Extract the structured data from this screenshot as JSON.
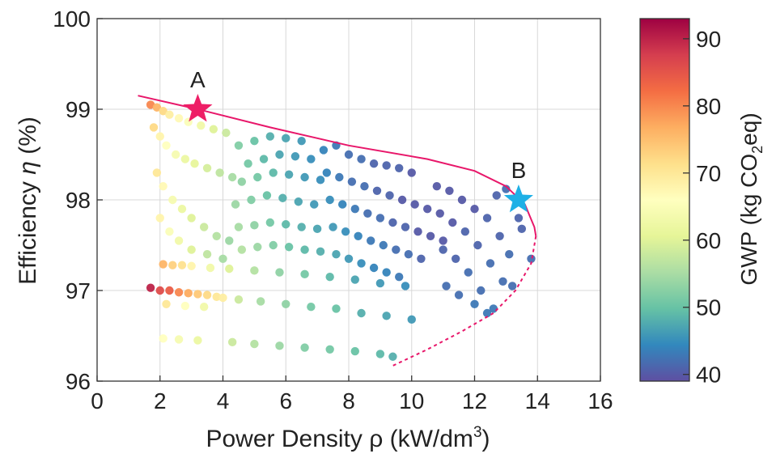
{
  "chart_data": {
    "type": "scatter",
    "title": "",
    "xlabel": "Power Density ρ (kW/dm",
    "xlabel_superscript": "3",
    "xlabel_close": ")",
    "ylabel_prefix": "Efficiency ",
    "ylabel_symbol": "η",
    "ylabel_suffix": " (%)",
    "xlim": [
      0,
      16
    ],
    "ylim": [
      96,
      100
    ],
    "xticks": [
      "0",
      "2",
      "4",
      "6",
      "8",
      "10",
      "12",
      "14",
      "16"
    ],
    "yticks": [
      "96",
      "97",
      "98",
      "99",
      "100"
    ],
    "grid": true,
    "colorbar": {
      "label_prefix": "GWP (kg CO",
      "label_subscript": "2",
      "label_suffix": "eq)",
      "range": [
        39,
        93
      ],
      "ticks": [
        "40",
        "50",
        "60",
        "70",
        "80",
        "90"
      ],
      "colormap": [
        "#5e4fa2",
        "#3288bd",
        "#66c2a5",
        "#abdda4",
        "#e6f598",
        "#ffffbf",
        "#fee08b",
        "#fdae61",
        "#f46d43",
        "#d53e4f",
        "#9e0142"
      ]
    },
    "pareto_front": {
      "color": "#e8176a",
      "solid": [
        [
          1.3,
          99.15
        ],
        [
          3.2,
          99.0
        ],
        [
          5.5,
          98.8
        ],
        [
          8.0,
          98.6
        ],
        [
          10.5,
          98.45
        ],
        [
          12.0,
          98.32
        ],
        [
          13.0,
          98.15
        ],
        [
          13.6,
          97.95
        ],
        [
          13.9,
          97.7
        ],
        [
          13.95,
          97.6
        ]
      ],
      "dashed": [
        [
          13.95,
          97.6
        ],
        [
          13.8,
          97.3
        ],
        [
          13.3,
          97.0
        ],
        [
          12.6,
          96.75
        ],
        [
          11.6,
          96.55
        ],
        [
          10.5,
          96.35
        ],
        [
          9.4,
          96.17
        ]
      ]
    },
    "markers": [
      {
        "label": "A",
        "x": 3.2,
        "y": 99.0,
        "color": "#ee1e66"
      },
      {
        "label": "B",
        "x": 13.4,
        "y": 98.0,
        "color": "#1fb0e6"
      }
    ],
    "series": [
      {
        "comment_free": true,
        "points": [
          [
            1.7,
            97.03,
            90
          ],
          [
            2.0,
            97.0,
            86
          ],
          [
            2.3,
            97.0,
            84
          ],
          [
            2.6,
            96.98,
            80
          ],
          [
            2.9,
            96.97,
            77
          ],
          [
            3.2,
            96.96,
            74
          ],
          [
            3.5,
            96.95,
            72
          ],
          [
            3.8,
            96.93,
            70
          ],
          [
            4.0,
            96.92,
            69
          ],
          [
            2.1,
            97.29,
            76
          ],
          [
            2.4,
            97.28,
            73
          ],
          [
            2.7,
            97.28,
            71
          ],
          [
            3.0,
            97.27,
            68
          ],
          [
            3.6,
            97.25,
            63
          ],
          [
            4.2,
            97.24,
            60
          ],
          [
            5.0,
            97.22,
            56
          ],
          [
            5.8,
            97.2,
            53
          ],
          [
            6.6,
            97.18,
            51
          ],
          [
            7.4,
            97.15,
            49
          ],
          [
            8.2,
            97.12,
            47
          ],
          [
            9.0,
            97.08,
            46
          ],
          [
            9.8,
            97.05,
            45
          ],
          [
            2.2,
            96.85,
            70
          ],
          [
            2.8,
            96.83,
            66
          ],
          [
            3.4,
            96.82,
            63
          ],
          [
            4.5,
            96.9,
            58
          ],
          [
            5.2,
            96.88,
            55
          ],
          [
            6.0,
            96.85,
            53
          ],
          [
            6.8,
            96.82,
            51
          ],
          [
            7.6,
            96.8,
            50
          ],
          [
            8.4,
            96.75,
            48
          ],
          [
            9.2,
            96.72,
            47
          ],
          [
            10.0,
            96.68,
            46
          ],
          [
            2.1,
            96.47,
            66
          ],
          [
            2.6,
            96.46,
            64
          ],
          [
            3.2,
            96.45,
            62
          ],
          [
            4.3,
            96.43,
            58
          ],
          [
            5.0,
            96.41,
            56
          ],
          [
            5.8,
            96.39,
            54
          ],
          [
            6.6,
            96.37,
            52
          ],
          [
            7.4,
            96.35,
            51
          ],
          [
            8.2,
            96.33,
            50
          ],
          [
            9.0,
            96.3,
            49
          ],
          [
            9.4,
            96.27,
            48
          ],
          [
            1.7,
            99.05,
            80
          ],
          [
            1.9,
            99.02,
            76
          ],
          [
            2.1,
            98.98,
            72
          ],
          [
            2.3,
            98.94,
            69
          ],
          [
            2.6,
            98.9,
            67
          ],
          [
            2.9,
            98.86,
            65
          ],
          [
            3.3,
            98.82,
            63
          ],
          [
            3.7,
            98.78,
            60
          ],
          [
            4.1,
            98.74,
            58
          ],
          [
            1.8,
            98.8,
            72
          ],
          [
            2.0,
            98.7,
            68
          ],
          [
            2.2,
            98.6,
            66
          ],
          [
            2.5,
            98.5,
            64
          ],
          [
            2.8,
            98.45,
            62
          ],
          [
            3.1,
            98.4,
            61
          ],
          [
            3.5,
            98.35,
            59
          ],
          [
            3.9,
            98.3,
            57
          ],
          [
            4.3,
            98.25,
            55
          ],
          [
            1.9,
            98.3,
            70
          ],
          [
            2.1,
            98.15,
            67
          ],
          [
            2.4,
            98.0,
            64
          ],
          [
            2.7,
            97.9,
            62
          ],
          [
            3.0,
            97.8,
            60
          ],
          [
            3.4,
            97.7,
            58
          ],
          [
            3.8,
            97.6,
            56
          ],
          [
            4.2,
            97.55,
            54
          ],
          [
            2.0,
            97.8,
            68
          ],
          [
            2.3,
            97.65,
            65
          ],
          [
            2.6,
            97.55,
            63
          ],
          [
            3.0,
            97.45,
            60
          ],
          [
            3.5,
            97.4,
            57
          ],
          [
            4.0,
            97.35,
            55
          ],
          [
            4.5,
            98.6,
            52
          ],
          [
            5.0,
            98.65,
            50
          ],
          [
            5.5,
            98.7,
            48
          ],
          [
            6.0,
            98.68,
            47
          ],
          [
            6.5,
            98.65,
            46
          ],
          [
            4.8,
            98.4,
            51
          ],
          [
            5.3,
            98.45,
            49
          ],
          [
            5.8,
            98.5,
            47
          ],
          [
            6.3,
            98.48,
            46
          ],
          [
            6.8,
            98.45,
            45
          ],
          [
            4.6,
            98.2,
            53
          ],
          [
            5.1,
            98.25,
            51
          ],
          [
            5.6,
            98.3,
            49
          ],
          [
            6.1,
            98.28,
            47
          ],
          [
            6.6,
            98.25,
            46
          ],
          [
            7.1,
            98.22,
            45
          ],
          [
            4.4,
            97.95,
            54
          ],
          [
            4.9,
            98.0,
            52
          ],
          [
            5.4,
            98.05,
            50
          ],
          [
            5.9,
            98.02,
            48
          ],
          [
            6.4,
            97.98,
            47
          ],
          [
            6.9,
            97.95,
            46
          ],
          [
            4.5,
            97.7,
            55
          ],
          [
            5.0,
            97.72,
            53
          ],
          [
            5.5,
            97.75,
            51
          ],
          [
            6.0,
            97.73,
            49
          ],
          [
            6.5,
            97.7,
            48
          ],
          [
            7.0,
            97.68,
            47
          ],
          [
            4.6,
            97.45,
            56
          ],
          [
            5.1,
            97.48,
            54
          ],
          [
            5.6,
            97.5,
            52
          ],
          [
            6.1,
            97.48,
            50
          ],
          [
            6.6,
            97.45,
            49
          ],
          [
            7.1,
            97.43,
            48
          ],
          [
            7.2,
            98.55,
            44
          ],
          [
            7.6,
            98.6,
            43
          ],
          [
            8.0,
            98.5,
            42
          ],
          [
            8.4,
            98.45,
            42
          ],
          [
            8.8,
            98.4,
            41
          ],
          [
            9.2,
            98.38,
            41
          ],
          [
            9.6,
            98.35,
            41
          ],
          [
            10.0,
            98.3,
            40
          ],
          [
            7.3,
            98.3,
            44
          ],
          [
            7.7,
            98.25,
            43
          ],
          [
            8.1,
            98.2,
            42
          ],
          [
            8.5,
            98.15,
            42
          ],
          [
            8.9,
            98.1,
            41
          ],
          [
            9.3,
            98.05,
            41
          ],
          [
            9.7,
            98.0,
            40
          ],
          [
            10.1,
            97.95,
            40
          ],
          [
            10.5,
            97.9,
            40
          ],
          [
            7.4,
            98.0,
            45
          ],
          [
            7.8,
            97.95,
            44
          ],
          [
            8.2,
            97.9,
            43
          ],
          [
            8.6,
            97.85,
            42
          ],
          [
            9.0,
            97.8,
            42
          ],
          [
            9.4,
            97.75,
            41
          ],
          [
            9.8,
            97.7,
            41
          ],
          [
            10.2,
            97.65,
            40
          ],
          [
            10.6,
            97.6,
            40
          ],
          [
            11.0,
            97.55,
            40
          ],
          [
            7.5,
            97.7,
            46
          ],
          [
            7.9,
            97.65,
            45
          ],
          [
            8.3,
            97.6,
            44
          ],
          [
            8.7,
            97.55,
            43
          ],
          [
            9.1,
            97.5,
            43
          ],
          [
            9.5,
            97.45,
            42
          ],
          [
            9.9,
            97.4,
            42
          ],
          [
            10.3,
            97.35,
            41
          ],
          [
            7.6,
            97.4,
            47
          ],
          [
            8.0,
            97.35,
            46
          ],
          [
            8.4,
            97.3,
            45
          ],
          [
            8.8,
            97.25,
            44
          ],
          [
            9.2,
            97.2,
            44
          ],
          [
            9.6,
            97.15,
            43
          ],
          [
            10.8,
            98.15,
            40
          ],
          [
            11.2,
            98.1,
            40
          ],
          [
            11.6,
            98.0,
            40
          ],
          [
            12.0,
            97.9,
            40
          ],
          [
            12.4,
            97.8,
            41
          ],
          [
            12.8,
            97.6,
            41
          ],
          [
            13.1,
            97.4,
            42
          ],
          [
            13.2,
            97.05,
            42
          ],
          [
            10.9,
            97.85,
            40
          ],
          [
            11.3,
            97.75,
            40
          ],
          [
            11.7,
            97.65,
            41
          ],
          [
            12.1,
            97.5,
            41
          ],
          [
            12.5,
            97.3,
            42
          ],
          [
            12.9,
            97.1,
            42
          ],
          [
            11.0,
            97.45,
            41
          ],
          [
            11.4,
            97.35,
            41
          ],
          [
            11.8,
            97.2,
            42
          ],
          [
            12.2,
            97.0,
            42
          ],
          [
            12.6,
            96.8,
            43
          ],
          [
            11.1,
            97.05,
            42
          ],
          [
            11.5,
            96.95,
            42
          ],
          [
            12.0,
            96.85,
            43
          ],
          [
            12.4,
            96.75,
            43
          ],
          [
            13.0,
            98.12,
            42
          ],
          [
            13.5,
            97.68,
            41
          ],
          [
            13.8,
            97.35,
            42
          ],
          [
            13.4,
            97.8,
            41
          ],
          [
            12.7,
            98.05,
            41
          ]
        ]
      }
    ]
  }
}
